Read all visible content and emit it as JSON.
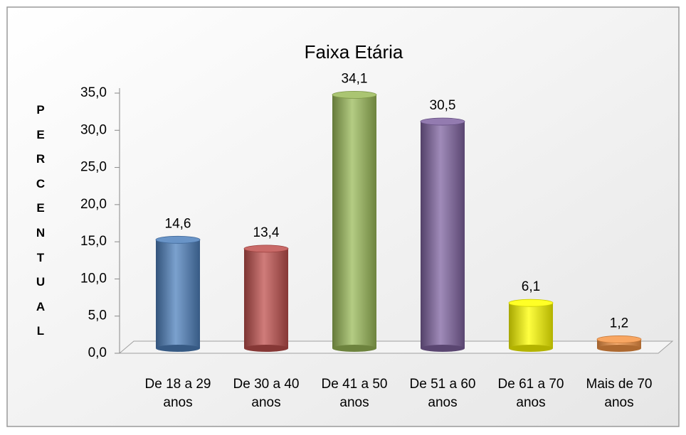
{
  "chart_data": {
    "type": "bar",
    "title": "Faixa Etária",
    "y_label": "PERCENTUAL",
    "categories": [
      "De 18 a 29 anos",
      "De 30 a 40 anos",
      "De 41 a 50 anos",
      "De 51 a 60 anos",
      "De 61 a 70 anos",
      "Mais de 70 anos"
    ],
    "values": [
      14.6,
      13.4,
      34.1,
      30.5,
      6.1,
      1.2
    ],
    "value_labels": [
      "14,6",
      "13,4",
      "34,1",
      "30,5",
      "6,1",
      "1,2"
    ],
    "colors": [
      "#4f81bd",
      "#c0504d",
      "#9bbb59",
      "#8064a2",
      "#ffff00",
      "#f79646"
    ],
    "ylim": [
      0,
      35
    ],
    "yticks": [
      {
        "value": 0,
        "label": "0,0"
      },
      {
        "value": 5,
        "label": "5,0"
      },
      {
        "value": 10,
        "label": "10,0"
      },
      {
        "value": 15,
        "label": "15,0"
      },
      {
        "value": 20,
        "label": "20,0"
      },
      {
        "value": 25,
        "label": "25,0"
      },
      {
        "value": 30,
        "label": "30,0"
      },
      {
        "value": 35,
        "label": "35,0"
      }
    ]
  }
}
